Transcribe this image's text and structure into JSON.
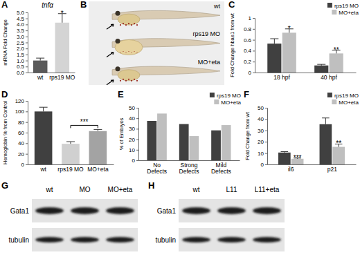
{
  "chart_data": [
    {
      "panel": "A",
      "type": "bar",
      "title": "tnfα",
      "ylabel": "mRNA Fold Change",
      "categories": [
        "wt",
        "rps19 MO"
      ],
      "values": [
        1.0,
        4.15
      ],
      "errors": [
        0.2,
        0.75
      ],
      "colors": [
        "#5a5a5a",
        "#d4d4d4"
      ],
      "ylim": [
        0,
        5
      ],
      "yticks": [
        {
          "value": 0,
          "label": "0.0"
        },
        {
          "value": 0.5,
          "label": "0.5"
        },
        {
          "value": 1,
          "label": "1.0"
        },
        {
          "value": 1.5,
          "label": "1.5"
        },
        {
          "value": 2,
          "label": "2.0"
        },
        {
          "value": 2.5,
          "label": "2.5"
        },
        {
          "value": 3,
          "label": "3.0"
        },
        {
          "value": 3.5,
          "label": "3.5"
        },
        {
          "value": 4,
          "label": "4.0"
        },
        {
          "value": 4.5,
          "label": "4.5"
        },
        {
          "value": 5,
          "label": "5.0"
        }
      ],
      "annotations": [
        {
          "text": "*",
          "category": "rps19 MO"
        }
      ]
    },
    {
      "panel": "C",
      "type": "bar",
      "ylabel": "Fold Change hbae1 from wt",
      "categories": [
        "18 hpf",
        "40 hpf"
      ],
      "series": [
        {
          "name": "rps19 MO",
          "color": "#404040",
          "values": [
            0.53,
            0.13
          ],
          "errors": [
            0.09,
            0.02
          ]
        },
        {
          "name": "MO+eta",
          "color": "#bfbfbf",
          "values": [
            0.73,
            0.35
          ],
          "errors": [
            0.07,
            0.06
          ]
        }
      ],
      "ylim": [
        0,
        1
      ],
      "yticks": [
        0,
        0.2,
        0.4,
        0.6,
        0.8,
        1
      ],
      "legend": "top-right",
      "annotations": [
        {
          "text": "*",
          "category": "18 hpf",
          "series": "MO+eta"
        },
        {
          "text": "**",
          "category": "40 hpf",
          "series": "MO+eta"
        }
      ]
    },
    {
      "panel": "D",
      "type": "bar",
      "ylabel": "Hemoglobin % from Control",
      "categories": [
        "wt",
        "rps19 MO",
        "MO+eta"
      ],
      "values": [
        100,
        39,
        63
      ],
      "errors": [
        8,
        4,
        3
      ],
      "colors": [
        "#404040",
        "#d0d0d0",
        "#a3a3a3"
      ],
      "ylim": [
        0,
        120
      ],
      "yticks": [
        0,
        20,
        40,
        60,
        80,
        100,
        120
      ],
      "annotations": [
        {
          "text": "***",
          "from": "rps19 MO",
          "to": "MO+eta"
        }
      ]
    },
    {
      "panel": "E",
      "type": "bar",
      "ylabel": "% of Embryos",
      "categories": [
        "No Defects",
        "Strong Defects",
        "Mild Defects"
      ],
      "series": [
        {
          "name": "rps19 MO",
          "color": "#404040",
          "values": [
            37.5,
            34.5,
            28.5
          ]
        },
        {
          "name": "MO+eta",
          "color": "#bfbfbf",
          "values": [
            44.5,
            23,
            33.5
          ]
        }
      ],
      "ylim": [
        0,
        50
      ],
      "yticks": [
        0,
        10,
        20,
        30,
        40,
        50
      ],
      "legend": "top-right"
    },
    {
      "panel": "F",
      "type": "bar",
      "ylabel": "Fold Change from wt",
      "categories": [
        "il6",
        "p21"
      ],
      "series": [
        {
          "name": "rps19 MO",
          "color": "#404040",
          "values": [
            10.5,
            35.5
          ],
          "errors": [
            0.8,
            5.5
          ]
        },
        {
          "name": "MO+eta",
          "color": "#bfbfbf",
          "values": [
            5,
            15.5
          ],
          "errors": [
            0.6,
            2.5
          ]
        }
      ],
      "ylim": [
        0,
        50
      ],
      "yticks": [
        0,
        10,
        20,
        30,
        40,
        50
      ],
      "legend": "top-right",
      "annotations": [
        {
          "text": "***",
          "category": "il6",
          "series": "MO+eta"
        },
        {
          "text": "**",
          "category": "p21",
          "series": "MO+eta"
        }
      ]
    }
  ],
  "images": [
    {
      "panel": "B",
      "type": "photo",
      "labels": [
        "wt",
        "rps19 MO",
        "MO+eta"
      ]
    },
    {
      "panel": "G",
      "type": "western_blot",
      "lanes": [
        "wt",
        "MO",
        "MO+eta"
      ],
      "rows": [
        "Gata1",
        "tubulin"
      ]
    },
    {
      "panel": "H",
      "type": "western_blot",
      "lanes": [
        "wt",
        "L11",
        "L11+eta"
      ],
      "rows": [
        "Gata1",
        "tubulin"
      ]
    }
  ]
}
